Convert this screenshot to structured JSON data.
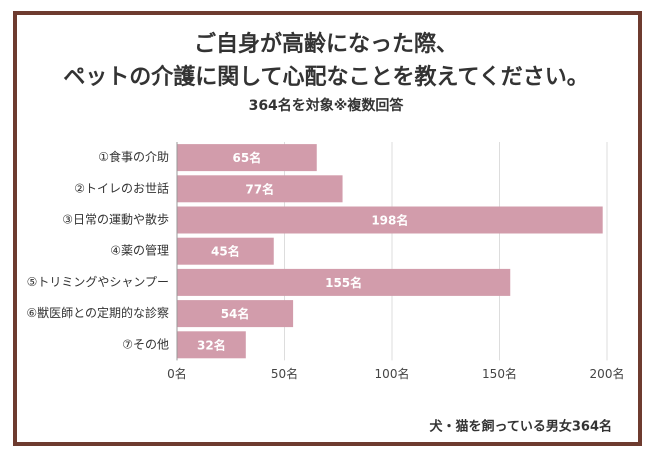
{
  "chart_data": {
    "type": "bar",
    "orientation": "horizontal",
    "title": [
      "ご自身が高齢になった際、",
      "ペットの介護に関して心配なことを教えてください。"
    ],
    "subtitle": "364名を対象※複数回答",
    "note": "犬・猫を飼っている男女364名",
    "categories": [
      "①食事の介助",
      "②トイレのお世話",
      "③日常の運動や散歩",
      "④薬の管理",
      "⑤トリミングやシャンプー",
      "⑥獣医師との定期的な診察",
      "⑦その他"
    ],
    "values": [
      65,
      77,
      198,
      45,
      155,
      54,
      32
    ],
    "value_labels": [
      "65名",
      "77名",
      "198名",
      "45名",
      "155名",
      "54名",
      "32名"
    ],
    "color": "#d29cab",
    "xlim": [
      0,
      200
    ],
    "xticks": [
      {
        "value": 0,
        "label": "0名"
      },
      {
        "value": 50,
        "label": "50名"
      },
      {
        "value": 100,
        "label": "100名"
      },
      {
        "value": 150,
        "label": "150名"
      },
      {
        "value": 200,
        "label": "200名"
      }
    ],
    "grid": true
  }
}
